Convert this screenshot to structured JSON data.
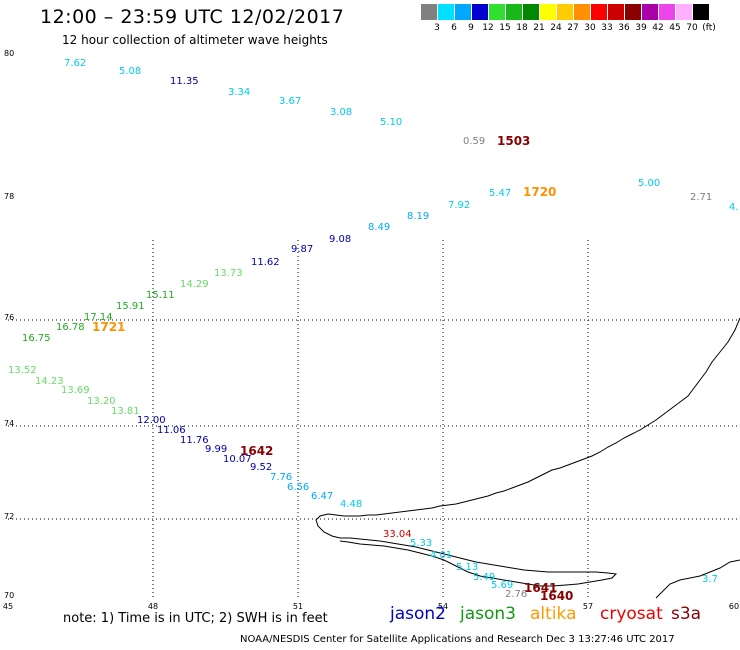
{
  "title": "12:00 – 23:59 UTC 12/02/2017",
  "subtitle": "12 hour collection of altimeter wave heights",
  "legend": {
    "unit": "(ft)",
    "bins": [
      {
        "label": "3",
        "color": "#808080"
      },
      {
        "label": "6",
        "color": "#00e0ff"
      },
      {
        "label": "9",
        "color": "#00a8ff"
      },
      {
        "label": "12",
        "color": "#0000d0"
      },
      {
        "label": "15",
        "color": "#30e030"
      },
      {
        "label": "18",
        "color": "#18b818"
      },
      {
        "label": "21",
        "color": "#008800"
      },
      {
        "label": "24",
        "color": "#ffff00"
      },
      {
        "label": "27",
        "color": "#ffcc00"
      },
      {
        "label": "30",
        "color": "#ff9000"
      },
      {
        "label": "33",
        "color": "#ff0000"
      },
      {
        "label": "36",
        "color": "#cc0000"
      },
      {
        "label": "39",
        "color": "#880000"
      },
      {
        "label": "42",
        "color": "#aa00aa"
      },
      {
        "label": "45",
        "color": "#ee44ee"
      },
      {
        "label": "70",
        "color": "#ffb0ff"
      },
      {
        "label": "",
        "color": "#000000"
      }
    ]
  },
  "axes": {
    "lat_labels": [
      "80",
      "78",
      "76",
      "74",
      "72",
      "70"
    ],
    "lon_labels": [
      "45",
      "48",
      "51",
      "54",
      "57",
      "60"
    ]
  },
  "observations": [
    {
      "v": "7.62",
      "c": "#00ccee"
    },
    {
      "v": "5.08",
      "c": "#00ccee"
    },
    {
      "v": "11.35",
      "c": "#0000aa"
    },
    {
      "v": "3.34",
      "c": "#00ccee"
    },
    {
      "v": "3.67",
      "c": "#00ccee"
    },
    {
      "v": "3.08",
      "c": "#00ccee"
    },
    {
      "v": "5.10",
      "c": "#00ccee"
    },
    {
      "v": "0.59",
      "c": "#808080"
    },
    {
      "v": "5.00",
      "c": "#00ccee"
    },
    {
      "v": "2.71",
      "c": "#808080"
    },
    {
      "v": "4.",
      "c": "#00ccee"
    },
    {
      "v": "5.47",
      "c": "#00ccee"
    },
    {
      "v": "7.92",
      "c": "#00ccee"
    },
    {
      "v": "8.19",
      "c": "#00a8ff"
    },
    {
      "v": "8.49",
      "c": "#00a8ff"
    },
    {
      "v": "9.08",
      "c": "#0000aa"
    },
    {
      "v": "9.87",
      "c": "#0000aa"
    },
    {
      "v": "11.62",
      "c": "#0000aa"
    },
    {
      "v": "13.73",
      "c": "#66dd66"
    },
    {
      "v": "14.29",
      "c": "#66dd66"
    },
    {
      "v": "15.11",
      "c": "#22aa22"
    },
    {
      "v": "15.91",
      "c": "#22aa22"
    },
    {
      "v": "17.14",
      "c": "#22aa22"
    },
    {
      "v": "16.78",
      "c": "#22aa22"
    },
    {
      "v": "16.75",
      "c": "#22aa22"
    },
    {
      "v": "13.52",
      "c": "#66dd66"
    },
    {
      "v": "14.23",
      "c": "#66dd66"
    },
    {
      "v": "13.69",
      "c": "#66dd66"
    },
    {
      "v": "13.20",
      "c": "#66dd66"
    },
    {
      "v": "13.81",
      "c": "#66dd66"
    },
    {
      "v": "12.00",
      "c": "#0000aa"
    },
    {
      "v": "11.06",
      "c": "#0000aa"
    },
    {
      "v": "11.76",
      "c": "#0000aa"
    },
    {
      "v": "9.99",
      "c": "#0000aa"
    },
    {
      "v": "10.07",
      "c": "#0000aa"
    },
    {
      "v": "9.52",
      "c": "#0000aa"
    },
    {
      "v": "7.76",
      "c": "#00a8ff"
    },
    {
      "v": "6.56",
      "c": "#00a8ff"
    },
    {
      "v": "6.47",
      "c": "#00a8ff"
    },
    {
      "v": "4.48",
      "c": "#00ccee"
    },
    {
      "v": "33.04",
      "c": "#cc0000"
    },
    {
      "v": "5.33",
      "c": "#00ccee"
    },
    {
      "v": "4.01",
      "c": "#00ccee"
    },
    {
      "v": "5.13",
      "c": "#00ccee"
    },
    {
      "v": "5.49",
      "c": "#00ccee"
    },
    {
      "v": "5.69",
      "c": "#00ccee"
    },
    {
      "v": "2.76",
      "c": "#808080"
    },
    {
      "v": "3.7",
      "c": "#00ccee"
    }
  ],
  "times": [
    {
      "v": "1503",
      "c": "#880000"
    },
    {
      "v": "1720",
      "c": "#ff9000"
    },
    {
      "v": "1721",
      "c": "#ff9000"
    },
    {
      "v": "1642",
      "c": "#880000"
    },
    {
      "v": "1641",
      "c": "#880000"
    },
    {
      "v": "1640",
      "c": "#880000"
    }
  ],
  "note": "note:  1) Time is in UTC;  2) SWH is in feet",
  "satellites": [
    {
      "name": "jason2",
      "color": "#0000cc"
    },
    {
      "name": "jason3",
      "color": "#119911"
    },
    {
      "name": "altika",
      "color": "#ff9900"
    },
    {
      "name": "cryosat",
      "color": "#ee0000"
    },
    {
      "name": "s3a",
      "color": "#880000"
    }
  ],
  "footer": "NOAA/NESDIS Center for Satellite Applications and Research    Dec  3 13:27:46 UTC 2017"
}
